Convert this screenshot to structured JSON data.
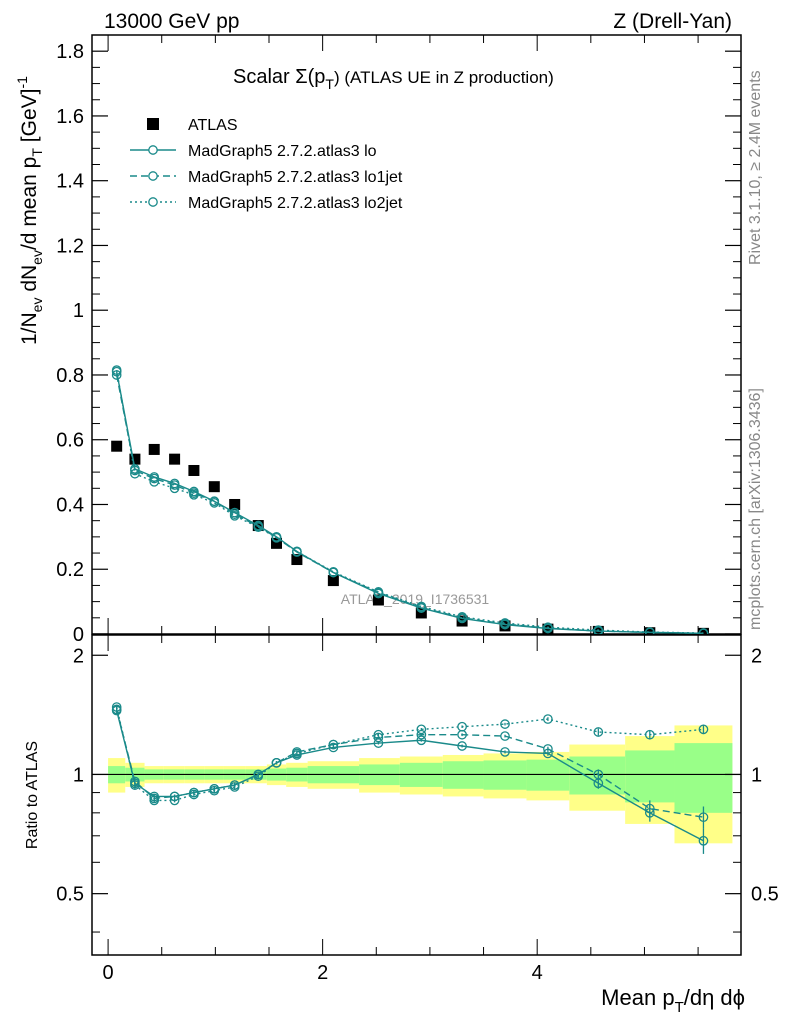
{
  "header": {
    "left": "13000 GeV pp",
    "right": "Z (Drell-Yan)"
  },
  "side_text": {
    "rivet": "Rivet 3.1.10, ≥ 2.4M events",
    "mcplots": "mcplots.cern.ch [arXiv:1306.3436]"
  },
  "watermark": "ATLAS_2019_I1736531",
  "colors": {
    "mc": "#1a8a8a",
    "data": "#000000",
    "band_inner": "#99ff88",
    "band_outer": "#ffff88"
  },
  "chart_data": [
    {
      "type": "line",
      "panel": "main",
      "title_main": "Scalar Σ(p",
      "title_sub": "T",
      "title_tail": ") (ATLAS UE in Z production)",
      "ylabel": "1/N_ev dN_ev/d mean p_T [GeV]^-1",
      "xlim": [
        -0.15,
        5.9
      ],
      "ylim": [
        0,
        1.85
      ],
      "x": [
        0.08,
        0.25,
        0.43,
        0.62,
        0.8,
        0.99,
        1.18,
        1.4,
        1.57,
        1.76,
        2.1,
        2.52,
        2.92,
        3.3,
        3.7,
        4.1,
        4.57,
        5.05,
        5.55
      ],
      "yticks": [
        0,
        0.2,
        0.4,
        0.6,
        0.8,
        1,
        1.2,
        1.4,
        1.6,
        1.8
      ],
      "xticks": [
        0,
        2,
        4
      ],
      "legend_position": "top-left",
      "series": [
        {
          "name": "ATLAS",
          "style": "data",
          "values": [
            0.58,
            0.54,
            0.57,
            0.54,
            0.505,
            0.455,
            0.4,
            0.335,
            0.28,
            0.23,
            0.165,
            0.105,
            0.065,
            0.04,
            0.025,
            0.015,
            0.008,
            0.004,
            0.002
          ]
        },
        {
          "name": "MadGraph5 2.7.2.atlas3 lo",
          "style": "solid",
          "values": [
            0.81,
            0.51,
            0.485,
            0.465,
            0.44,
            0.41,
            0.375,
            0.335,
            0.3,
            0.255,
            0.19,
            0.125,
            0.08,
            0.048,
            0.029,
            0.017,
            0.009,
            0.005,
            0.002
          ]
        },
        {
          "name": "MadGraph5 2.7.2.atlas3 lo1jet",
          "style": "dashed",
          "values": [
            0.8,
            0.505,
            0.48,
            0.46,
            0.435,
            0.41,
            0.37,
            0.332,
            0.298,
            0.253,
            0.19,
            0.128,
            0.082,
            0.05,
            0.031,
            0.018,
            0.009,
            0.005,
            0.002
          ]
        },
        {
          "name": "MadGraph5 2.7.2.atlas3 lo2jet",
          "style": "dotted",
          "values": [
            0.815,
            0.495,
            0.47,
            0.45,
            0.43,
            0.405,
            0.365,
            0.33,
            0.297,
            0.255,
            0.192,
            0.13,
            0.085,
            0.053,
            0.034,
            0.021,
            0.012,
            0.006,
            0.003
          ]
        }
      ]
    },
    {
      "type": "line",
      "panel": "ratio",
      "ylabel": "Ratio to ATLAS",
      "xlabel_main": "Mean p",
      "xlabel_sub": "T",
      "xlabel_tail": "/dη dϕ",
      "xlim": [
        -0.15,
        5.9
      ],
      "ylim": [
        0.35,
        2.25
      ],
      "yticks": [
        0.5,
        1,
        2
      ],
      "ytick_labels": [
        "0.5",
        "1",
        "2"
      ],
      "xticks": [
        0,
        2,
        4
      ],
      "xtick_labels": [
        "0",
        "2",
        "4"
      ],
      "x": [
        0.08,
        0.25,
        0.43,
        0.62,
        0.8,
        0.99,
        1.18,
        1.4,
        1.57,
        1.76,
        2.1,
        2.52,
        2.92,
        3.3,
        3.7,
        4.1,
        4.57,
        5.05,
        5.55
      ],
      "bins": [
        [
          0,
          0.16
        ],
        [
          0.16,
          0.34
        ],
        [
          0.34,
          0.52
        ],
        [
          0.52,
          0.71
        ],
        [
          0.71,
          0.9
        ],
        [
          0.9,
          1.08
        ],
        [
          1.08,
          1.28
        ],
        [
          1.28,
          1.48
        ],
        [
          1.48,
          1.66
        ],
        [
          1.66,
          1.86
        ],
        [
          1.86,
          2.34
        ],
        [
          2.34,
          2.72
        ],
        [
          2.72,
          3.12
        ],
        [
          3.12,
          3.5
        ],
        [
          3.5,
          3.9
        ],
        [
          3.9,
          4.3
        ],
        [
          4.3,
          4.82
        ],
        [
          4.82,
          5.28
        ],
        [
          5.28,
          5.82
        ]
      ],
      "band_inner": [
        0.05,
        0.04,
        0.03,
        0.03,
        0.03,
        0.03,
        0.03,
        0.03,
        0.035,
        0.04,
        0.05,
        0.06,
        0.07,
        0.08,
        0.085,
        0.09,
        0.11,
        0.15,
        0.2
      ],
      "band_outer": [
        0.1,
        0.07,
        0.05,
        0.05,
        0.05,
        0.05,
        0.05,
        0.05,
        0.06,
        0.07,
        0.08,
        0.1,
        0.11,
        0.12,
        0.13,
        0.14,
        0.19,
        0.25,
        0.33
      ],
      "series": [
        {
          "name": "MadGraph5 2.7.2.atlas3 lo",
          "style": "solid",
          "values": [
            1.45,
            0.95,
            0.88,
            0.88,
            0.9,
            0.92,
            0.94,
            1.0,
            1.07,
            1.12,
            1.17,
            1.2,
            1.22,
            1.18,
            1.14,
            1.13,
            0.95,
            0.8,
            0.68
          ],
          "errors": [
            0.02,
            0.02,
            0.01,
            0.01,
            0.01,
            0.01,
            0.01,
            0.01,
            0.01,
            0.01,
            0.01,
            0.01,
            0.01,
            0.01,
            0.01,
            0.015,
            0.03,
            0.04,
            0.05
          ]
        },
        {
          "name": "MadGraph5 2.7.2.atlas3 lo1jet",
          "style": "dashed",
          "values": [
            1.46,
            0.96,
            0.87,
            0.88,
            0.9,
            0.92,
            0.94,
            1.0,
            1.07,
            1.14,
            1.19,
            1.24,
            1.26,
            1.26,
            1.25,
            1.16,
            1.0,
            0.82,
            0.78
          ],
          "errors": [
            0.02,
            0.02,
            0.01,
            0.01,
            0.01,
            0.01,
            0.01,
            0.01,
            0.01,
            0.01,
            0.01,
            0.01,
            0.01,
            0.01,
            0.01,
            0.015,
            0.03,
            0.04,
            0.05
          ]
        },
        {
          "name": "MadGraph5 2.7.2.atlas3 lo2jet",
          "style": "dotted",
          "values": [
            1.48,
            0.94,
            0.86,
            0.86,
            0.89,
            0.91,
            0.93,
            0.99,
            1.07,
            1.13,
            1.19,
            1.26,
            1.3,
            1.32,
            1.34,
            1.38,
            1.28,
            1.26,
            1.3
          ],
          "errors": [
            0.02,
            0.02,
            0.01,
            0.01,
            0.01,
            0.01,
            0.01,
            0.01,
            0.01,
            0.01,
            0.01,
            0.01,
            0.01,
            0.01,
            0.01,
            0.015,
            0.025,
            0.03,
            0.035
          ]
        }
      ]
    }
  ]
}
